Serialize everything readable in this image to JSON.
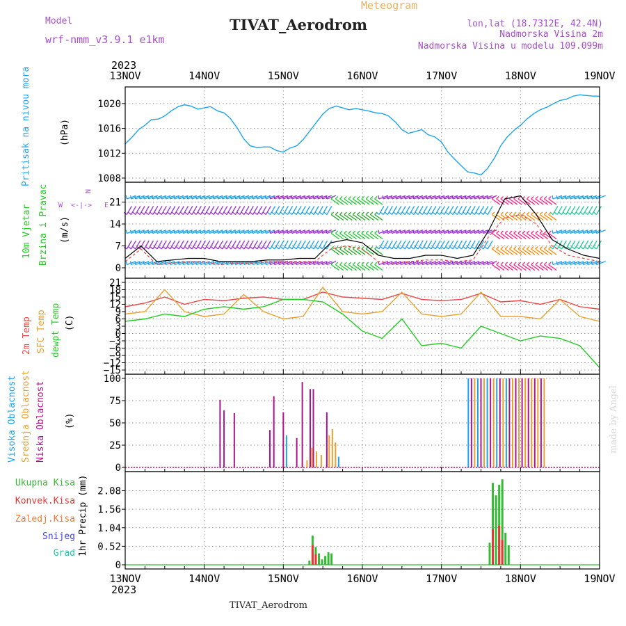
{
  "header": {
    "model_label": "Model",
    "model_value": "wrf-nmm_v3.9.1 e1km",
    "product": "Meteogram",
    "station": "TIVAT_Aerodrom",
    "lonlat": "lon,lat (18.7312E, 42.4N)",
    "elevation": "Nadmorska Visina 2m",
    "model_elevation": "Nadmorska Visina u modelu 109.099m",
    "footer_station": "TIVAT_Aerodrom",
    "credit": "made by Angel"
  },
  "colors": {
    "pressure": "#1ca3ec",
    "temp2m": "#ee4444",
    "sfc_temp": "#e8a030",
    "dewpoint": "#22cc22",
    "cloud_high": "#1ca3ec",
    "cloud_mid": "#e8a030",
    "cloud_low": "#b0128a",
    "precip_total": "#33bb33",
    "precip_conv": "#ee3333",
    "precip_frozen": "#ee7733",
    "precip_snow": "#4444dd",
    "precip_hail": "#22c4a8"
  },
  "time_axis": {
    "year": "2023",
    "dates": [
      "13NOV",
      "14NOV",
      "15NOV",
      "16NOV",
      "17NOV",
      "18NOV",
      "19NOV"
    ]
  },
  "chart_data": [
    {
      "id": "pressure",
      "type": "line",
      "ylabel": "Pritisak na nivou mora",
      "unit": "(hPa)",
      "ylim": [
        1008,
        1022
      ],
      "yticks": [
        1008,
        1012,
        1016,
        1020
      ],
      "x_days": [
        0,
        0.08,
        0.17,
        0.25,
        0.33,
        0.42,
        0.5,
        0.58,
        0.67,
        0.75,
        0.83,
        0.92,
        1.0,
        1.08,
        1.17,
        1.25,
        1.33,
        1.42,
        1.5,
        1.58,
        1.67,
        1.75,
        1.83,
        1.92,
        2.0,
        2.08,
        2.17,
        2.25,
        2.33,
        2.42,
        2.5,
        2.58,
        2.67,
        2.75,
        2.83,
        2.92,
        3.0,
        3.08,
        3.17,
        3.25,
        3.33,
        3.42,
        3.5,
        3.58,
        3.67,
        3.75,
        3.83,
        3.92,
        4.0,
        4.08,
        4.17,
        4.25,
        4.33,
        4.42,
        4.5,
        4.58,
        4.67,
        4.75,
        4.83,
        4.92,
        5.0,
        5.08,
        5.17,
        5.25,
        5.33,
        5.42,
        5.5,
        5.58,
        5.67,
        5.75,
        5.83,
        5.92,
        6.0
      ],
      "series": [
        {
          "values": [
            1013.5,
            1014.5,
            1015.8,
            1016.5,
            1017.4,
            1017.5,
            1018.0,
            1018.8,
            1019.5,
            1019.8,
            1019.6,
            1019.1,
            1019.3,
            1019.5,
            1018.8,
            1018.5,
            1017.6,
            1016.0,
            1014.3,
            1013.2,
            1012.9,
            1013.0,
            1013.0,
            1012.4,
            1012.2,
            1012.8,
            1013.2,
            1014.2,
            1015.5,
            1017.0,
            1018.3,
            1019.2,
            1019.6,
            1019.3,
            1019.0,
            1019.2,
            1019.0,
            1018.8,
            1018.5,
            1018.4,
            1018.0,
            1017.0,
            1015.8,
            1015.2,
            1015.5,
            1015.8,
            1015.0,
            1014.6,
            1013.8,
            1012.2,
            1011.0,
            1010.0,
            1009.0,
            1008.8,
            1008.5,
            1009.5,
            1011.2,
            1013.2,
            1014.6,
            1015.7,
            1016.5,
            1017.5,
            1018.4,
            1019.0,
            1019.4,
            1020.0,
            1020.5,
            1020.7,
            1021.2,
            1021.4,
            1021.3,
            1021.2,
            1021.2
          ]
        }
      ]
    },
    {
      "id": "wind",
      "type": "line",
      "ylabel": "10m Vjetar Brzina i Pravac",
      "unit": "(m/s)",
      "ylim": [
        -2,
        26
      ],
      "yticks": [
        0,
        7,
        14,
        21
      ],
      "compass": "N",
      "x_days": [
        0,
        0.2,
        0.4,
        0.6,
        0.8,
        1.0,
        1.2,
        1.4,
        1.6,
        1.8,
        2.0,
        2.2,
        2.4,
        2.6,
        2.8,
        3.0,
        3.2,
        3.4,
        3.6,
        3.8,
        4.0,
        4.2,
        4.4,
        4.6,
        4.8,
        5.0,
        5.2,
        5.4,
        5.6,
        5.8,
        6.0
      ],
      "series": [
        {
          "name": "gust",
          "values": [
            3,
            7,
            2,
            2.5,
            3,
            3,
            2,
            2,
            2,
            2.5,
            2.5,
            3,
            3,
            8,
            9,
            8,
            4,
            3,
            3,
            4,
            4,
            3,
            4,
            12,
            22,
            23,
            17,
            9,
            6,
            4,
            3
          ]
        },
        {
          "name": "wind",
          "values": [
            2,
            6,
            1,
            1.5,
            2,
            2,
            1,
            1.5,
            1.5,
            2,
            2,
            2,
            2,
            6,
            7,
            6,
            2,
            1.5,
            2,
            2.5,
            2.5,
            2,
            2.5,
            10,
            16,
            17,
            14,
            7,
            4,
            3,
            2
          ]
        }
      ]
    },
    {
      "id": "temperature",
      "type": "line",
      "ylabel": "2m Temp / SFC Temp / dewpt Temp",
      "unit": "(C)",
      "ylim": [
        -15,
        21
      ],
      "yticks": [
        -15,
        -12,
        -9,
        -6,
        -3,
        0,
        3,
        6,
        9,
        12,
        15,
        18,
        21
      ],
      "x_days": [
        0,
        0.25,
        0.5,
        0.75,
        1.0,
        1.25,
        1.5,
        1.75,
        2.0,
        2.25,
        2.5,
        2.75,
        3.0,
        3.25,
        3.5,
        3.75,
        4.0,
        4.25,
        4.5,
        4.75,
        5.0,
        5.25,
        5.5,
        5.75,
        6.0
      ],
      "series": [
        {
          "name": "2m Temp",
          "values": [
            11,
            12.5,
            15,
            12,
            14,
            13.5,
            14.5,
            15,
            14,
            14,
            17,
            15,
            14.5,
            14,
            16.5,
            14,
            13.5,
            14,
            16.5,
            13,
            13.5,
            12,
            14,
            11,
            10
          ]
        },
        {
          "name": "SFC Temp",
          "values": [
            8,
            9,
            18,
            9,
            7,
            8,
            16,
            9,
            6,
            7,
            19,
            9,
            8,
            9,
            17,
            8,
            7,
            8,
            17,
            7,
            7,
            6,
            14,
            7,
            5
          ]
        },
        {
          "name": "dewpt Temp",
          "values": [
            5,
            6,
            8,
            7,
            10,
            11,
            10,
            11,
            14,
            14,
            13,
            8,
            1,
            -2,
            6,
            -5,
            -4,
            -6,
            3,
            0,
            -3,
            -1,
            -2,
            -5,
            -14
          ]
        }
      ]
    },
    {
      "id": "clouds",
      "type": "bar",
      "ylabel": "Visoka Oblacnost / Srednja Oblacnost / Niska Oblacnost",
      "unit": "(%)",
      "ylim": [
        0,
        100
      ],
      "yticks": [
        0,
        25,
        50,
        75,
        100
      ],
      "series": [
        {
          "name": "Niska Oblacnost",
          "x_days": [
            1.2,
            1.25,
            1.38,
            1.83,
            1.88,
            2.0,
            2.17,
            2.24,
            2.34,
            2.38,
            2.55
          ],
          "values": [
            76,
            64,
            61,
            42,
            80,
            62,
            33,
            96,
            88,
            88,
            62
          ]
        },
        {
          "name": "Srednja Oblacnost",
          "x_days": [
            2.3,
            2.36,
            2.42,
            2.48,
            2.58,
            2.62,
            2.66
          ],
          "values": [
            8,
            22,
            18,
            14,
            36,
            43,
            28
          ]
        },
        {
          "name": "Visoka Oblacnost",
          "x_days": [
            2.04,
            2.7
          ],
          "values": [
            36,
            12
          ]
        },
        {
          "name": "Visoka Oblacnost block",
          "x_days": [
            4.34,
            4.38,
            4.42,
            4.46,
            4.5,
            4.54,
            4.58,
            4.62,
            4.66,
            4.7,
            4.74,
            4.78,
            4.82,
            4.86,
            4.9,
            4.94,
            4.98,
            5.02,
            5.06,
            5.1,
            5.14,
            5.18,
            5.22,
            5.26,
            5.3
          ],
          "values": [
            100,
            100,
            100,
            100,
            100,
            100,
            100,
            100,
            100,
            100,
            100,
            100,
            100,
            100,
            100,
            100,
            100,
            100,
            100,
            100,
            100,
            100,
            100,
            100,
            100
          ]
        }
      ]
    },
    {
      "id": "precip",
      "type": "bar",
      "ylabel": "1hr Precip (mm)",
      "legend": [
        "Ukupna Kisa",
        "Konvek.Kisa",
        "Zaledj.Kisa",
        "Snijeg",
        "Grad"
      ],
      "ylim": [
        0,
        2.5
      ],
      "yticks": [
        0,
        0.52,
        1.04,
        1.56,
        2.08
      ],
      "series": [
        {
          "name": "Ukupna Kisa",
          "x_days": [
            2.33,
            2.37,
            2.41,
            2.45,
            2.49,
            2.53,
            2.57,
            2.61,
            4.61,
            4.65,
            4.69,
            4.73,
            4.77,
            4.81,
            4.85
          ],
          "values": [
            0.12,
            0.82,
            0.5,
            0.32,
            0.15,
            0.25,
            0.35,
            0.32,
            0.62,
            2.3,
            1.95,
            2.25,
            2.4,
            0.9,
            0.55
          ]
        },
        {
          "name": "Konvek.Kisa",
          "x_days": [
            2.37,
            2.41,
            4.65,
            4.73,
            4.77
          ],
          "values": [
            0.55,
            0.3,
            1.0,
            1.1,
            0.7
          ]
        }
      ]
    }
  ]
}
